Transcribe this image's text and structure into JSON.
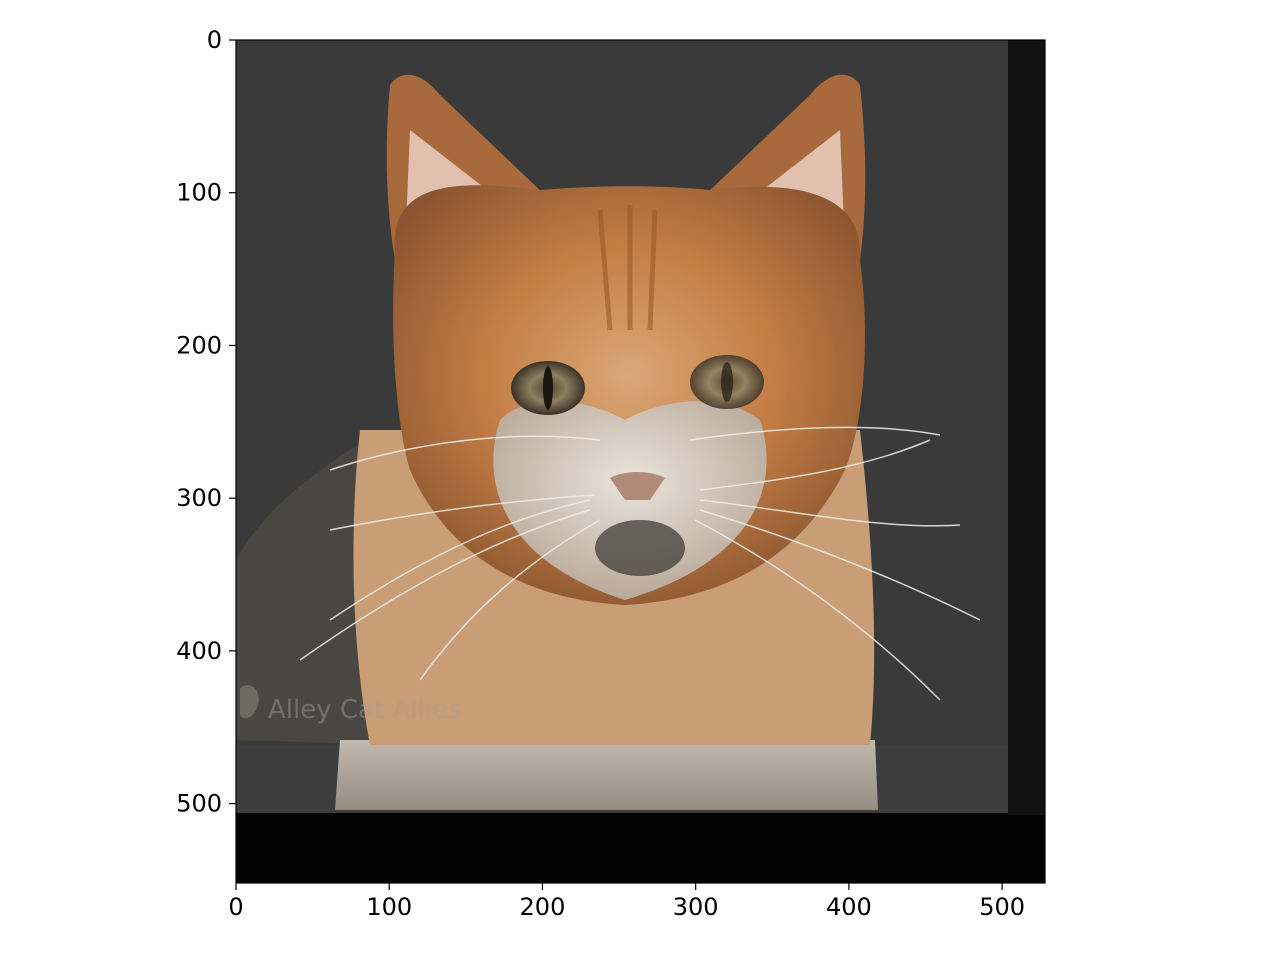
{
  "chart_data": {
    "type": "image",
    "title": "",
    "xlabel": "",
    "ylabel": "",
    "xlim": [
      0,
      528
    ],
    "ylim": [
      552,
      0
    ],
    "xticks": [
      0,
      100,
      200,
      300,
      400,
      500
    ],
    "yticks": [
      0,
      100,
      200,
      300,
      400,
      500
    ],
    "grid": false,
    "image": {
      "subject": "orange-and-white cat face, hybrid/blended image",
      "watermark": "Alley Cat Allies"
    }
  }
}
